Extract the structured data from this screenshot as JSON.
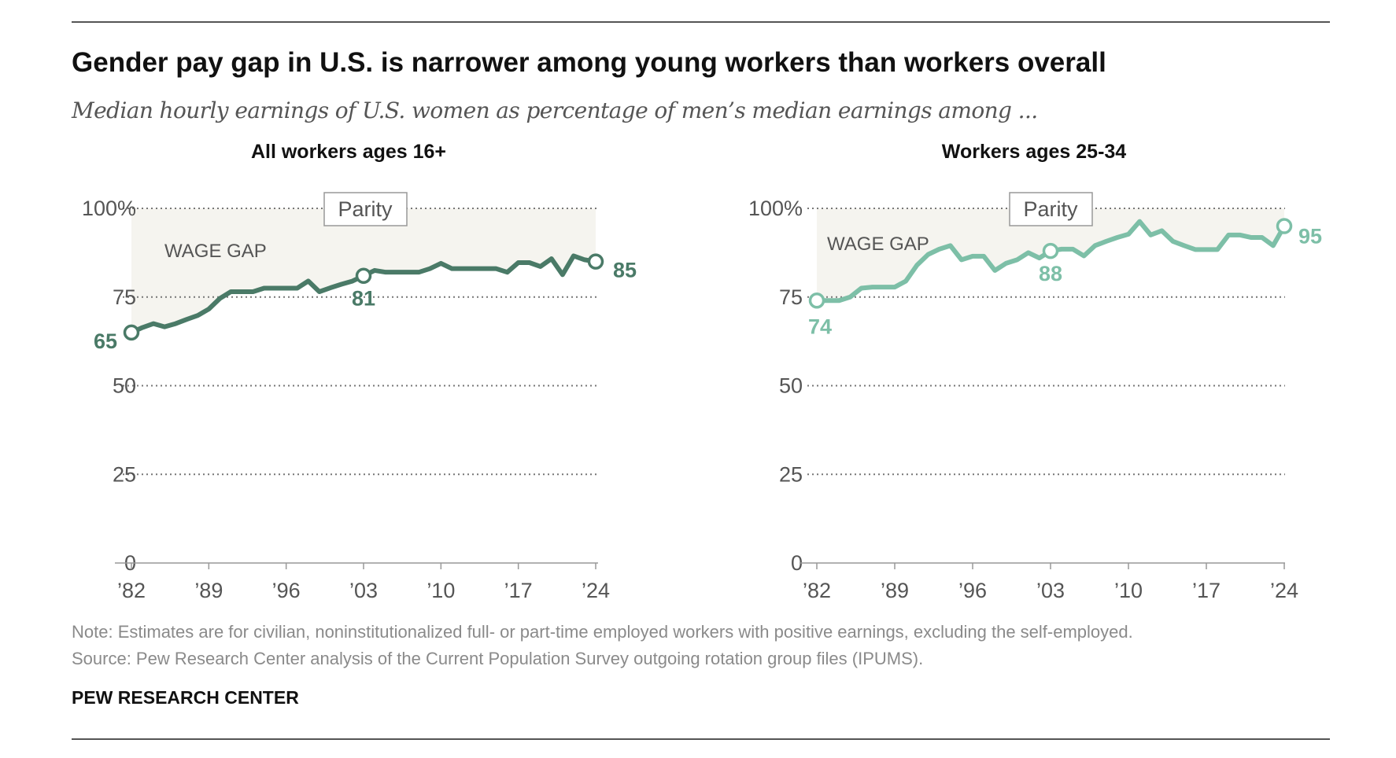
{
  "title": "Gender pay gap in U.S. is narrower among young workers than workers overall",
  "subtitle": "Median hourly earnings of U.S. women as percentage of men’s median earnings among ...",
  "note": "Note: Estimates are for civilian, noninstitutionalized full- or part-time employed workers with positive earnings, excluding the self-employed.",
  "source": "Source: Pew Research Center analysis of the Current Population Survey outgoing rotation group files (IPUMS).",
  "branding": "PEW RESEARCH CENTER",
  "chart_data": [
    {
      "type": "line",
      "title": "All workers ages 16+",
      "color": "#4a7a67",
      "ylim": [
        0,
        100
      ],
      "yticks": [
        0,
        25,
        50,
        75,
        100
      ],
      "ytick_labels": [
        "0",
        "25",
        "50",
        "75",
        "100%"
      ],
      "xticks": [
        1982,
        1989,
        1996,
        2003,
        2010,
        2017,
        2024
      ],
      "xtick_labels": [
        "’82",
        "’89",
        "’96",
        "’03",
        "’10",
        "’17",
        "’24"
      ],
      "grid": true,
      "reference_label": "Parity",
      "area_label": "WAGE GAP",
      "shade_color": "#f5f4ef",
      "x": [
        1982,
        1983,
        1984,
        1985,
        1986,
        1987,
        1988,
        1989,
        1990,
        1991,
        1992,
        1993,
        1994,
        1995,
        1996,
        1997,
        1998,
        1999,
        2000,
        2001,
        2002,
        2003,
        2004,
        2005,
        2006,
        2007,
        2008,
        2009,
        2010,
        2011,
        2012,
        2013,
        2014,
        2015,
        2016,
        2017,
        2018,
        2019,
        2020,
        2021,
        2022,
        2023,
        2024
      ],
      "values": [
        65,
        66.4,
        67.5,
        66.6,
        67.5,
        68.7,
        69.8,
        71.6,
        74.6,
        76.5,
        76.5,
        76.5,
        77.5,
        77.5,
        77.5,
        77.5,
        79.5,
        76.5,
        77.6,
        78.6,
        79.5,
        81,
        82.5,
        82,
        82,
        82,
        82,
        83,
        84.5,
        83,
        83,
        83,
        83,
        83,
        82,
        84.7,
        84.7,
        83.6,
        85.8,
        81.3,
        86.6,
        85.5,
        85
      ],
      "annotations": [
        {
          "year": 1982,
          "label": "65"
        },
        {
          "year": 2003,
          "label": "81"
        },
        {
          "year": 2024,
          "label": "85"
        }
      ]
    },
    {
      "type": "line",
      "title": "Workers ages 25-34",
      "color": "#7dbfa7",
      "ylim": [
        0,
        100
      ],
      "yticks": [
        0,
        25,
        50,
        75,
        100
      ],
      "ytick_labels": [
        "0",
        "25",
        "50",
        "75",
        "100%"
      ],
      "xticks": [
        1982,
        1989,
        1996,
        2003,
        2010,
        2017,
        2024
      ],
      "xtick_labels": [
        "’82",
        "’89",
        "’96",
        "’03",
        "’10",
        "’17",
        "’24"
      ],
      "grid": true,
      "reference_label": "Parity",
      "area_label": "WAGE GAP",
      "shade_color": "#f5f4ef",
      "x": [
        1982,
        1983,
        1984,
        1985,
        1986,
        1987,
        1988,
        1989,
        1990,
        1991,
        1992,
        1993,
        1994,
        1995,
        1996,
        1997,
        1998,
        1999,
        2000,
        2001,
        2002,
        2003,
        2004,
        2005,
        2006,
        2007,
        2008,
        2009,
        2010,
        2011,
        2012,
        2013,
        2014,
        2015,
        2016,
        2017,
        2018,
        2019,
        2020,
        2021,
        2022,
        2023,
        2024
      ],
      "values": [
        74,
        74,
        74,
        75,
        77.5,
        77.8,
        77.8,
        77.8,
        79.5,
        84,
        87,
        88.5,
        89.5,
        85.5,
        86.5,
        86.5,
        82.5,
        84.5,
        85.5,
        87.5,
        86,
        88,
        88.5,
        88.5,
        86.6,
        89.5,
        90.7,
        91.8,
        92.7,
        96.3,
        92.5,
        93.7,
        90.7,
        89.5,
        88.4,
        88.4,
        88.4,
        92.5,
        92.5,
        91.8,
        91.8,
        89.5,
        95
      ],
      "annotations": [
        {
          "year": 1982,
          "label": "74"
        },
        {
          "year": 2003,
          "label": "88"
        },
        {
          "year": 2024,
          "label": "95"
        }
      ]
    }
  ]
}
